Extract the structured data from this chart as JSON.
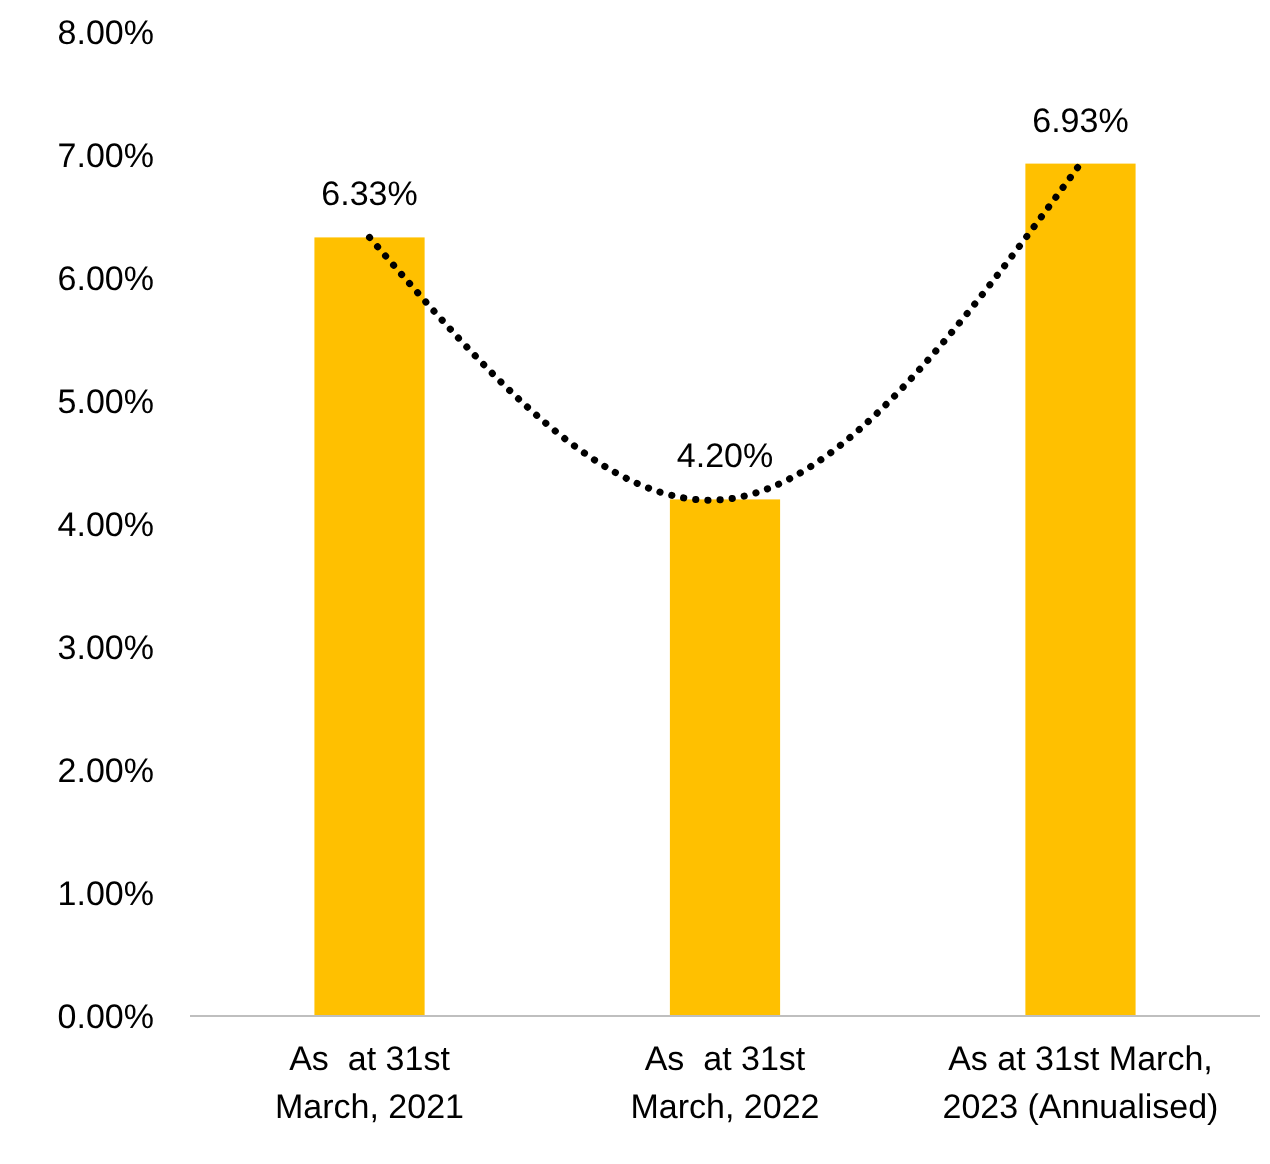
{
  "chart_data": {
    "type": "bar",
    "categories": [
      "As  at 31st\nMarch, 2021",
      "As  at 31st\nMarch, 2022",
      "As at 31st March,\n2023 (Annualised)"
    ],
    "series": [
      {
        "color": "#ffc000",
        "values": [
          6.33,
          4.2,
          6.93
        ],
        "value_labels": [
          "6.33%",
          "4.20%",
          "6.93%"
        ]
      },
      {
        "type": "line",
        "color": "#000000",
        "x": [
          "As  at 31st\nMarch, 2021",
          "As  at 31st\nMarch, 2022",
          "As at 31st March,\n2023 (Annualised)"
        ],
        "values": [
          6.33,
          4.2,
          6.93
        ],
        "line_style": "dotted",
        "marker": "none"
      }
    ],
    "ylim": [
      0,
      8
    ],
    "yticks": [
      {
        "value": 0,
        "label": "0.00%"
      },
      {
        "value": 1,
        "label": "1.00%"
      },
      {
        "value": 2,
        "label": "2.00%"
      },
      {
        "value": 3,
        "label": "3.00%"
      },
      {
        "value": 4,
        "label": "4.00%"
      },
      {
        "value": 5,
        "label": "5.00%"
      },
      {
        "value": 6,
        "label": "6.00%"
      },
      {
        "value": 7,
        "label": "7.00%"
      },
      {
        "value": 8,
        "label": "8.00%"
      }
    ],
    "grid": false
  }
}
